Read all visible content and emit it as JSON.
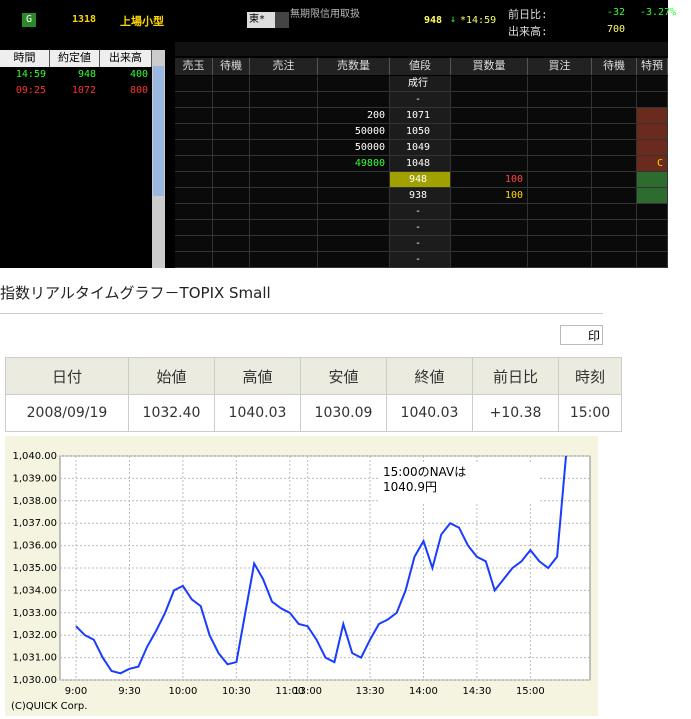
{
  "board": {
    "badge": "G",
    "code": "1318",
    "name": "上場小型",
    "market": "東*",
    "credit": "無期限信用取扱",
    "price": "948",
    "arrow": "↓",
    "time": "*14:59",
    "change_label": "前日比:",
    "change": "-32",
    "change_pct": "-3.27%",
    "volume_label": "出来高:",
    "volume": "700",
    "trades": {
      "headers": [
        "時間",
        "約定値",
        "出来高"
      ],
      "rows": [
        [
          "14:59",
          "948",
          "400"
        ],
        [
          "09:25",
          "1072",
          "800"
        ]
      ]
    },
    "book": {
      "headers": [
        "売玉",
        "待機",
        "売注",
        "売数量",
        "値段",
        "買数量",
        "買注",
        "待機",
        "特預"
      ],
      "rows": [
        {
          "price": "成行"
        },
        {
          "price": "-"
        },
        {
          "sell_qty": "200",
          "price": "1071"
        },
        {
          "sell_qty": "50000",
          "price": "1050"
        },
        {
          "sell_qty": "50000",
          "price": "1049"
        },
        {
          "sell_qty": "49800",
          "price": "1048",
          "special": "C"
        },
        {
          "price": "948",
          "buy_qty": "100"
        },
        {
          "price": "938",
          "buy_qty": "100"
        },
        {
          "price": "-"
        },
        {
          "price": "-"
        },
        {
          "price": "-"
        },
        {
          "price": "-"
        }
      ]
    }
  },
  "page": {
    "title": "指数リアルタイムグラフ－TOPIX Small",
    "print": "印",
    "table": {
      "headers": [
        "日付",
        "始値",
        "高値",
        "安値",
        "終値",
        "前日比",
        "時刻"
      ],
      "rows": [
        [
          "2008/09/19",
          "1032.40",
          "1040.03",
          "1030.09",
          "1040.03",
          "+10.38",
          "15:00"
        ]
      ]
    }
  },
  "chart_data": {
    "type": "line",
    "color": "#1a3cff",
    "grid": true,
    "categories": [
      "9:00",
      null,
      null,
      null,
      null,
      null,
      "9:30",
      null,
      null,
      null,
      null,
      null,
      "10:00",
      null,
      null,
      null,
      null,
      null,
      "10:30",
      null,
      null,
      null,
      null,
      null,
      "11:00",
      null,
      "13:00",
      null,
      null,
      null,
      null,
      null,
      null,
      "13:30",
      null,
      null,
      null,
      null,
      null,
      "14:00",
      null,
      null,
      null,
      null,
      null,
      "14:30",
      null,
      null,
      null,
      null,
      null,
      "15:00",
      null,
      null,
      null,
      null
    ],
    "values": [
      1032.4,
      1032.0,
      1031.8,
      1031.0,
      1030.4,
      1030.3,
      1030.5,
      1030.6,
      1031.5,
      1032.2,
      1033.0,
      1034.0,
      1034.2,
      1033.6,
      1033.3,
      1032.0,
      1031.2,
      1030.7,
      1030.8,
      1033.0,
      1035.2,
      1034.5,
      1033.5,
      1033.2,
      1033.0,
      1032.5,
      1032.4,
      1031.8,
      1031.0,
      1030.8,
      1032.5,
      1031.2,
      1031.0,
      1031.8,
      1032.5,
      1032.7,
      1033.0,
      1034.0,
      1035.5,
      1036.2,
      1035.0,
      1036.5,
      1037.0,
      1036.8,
      1036.0,
      1035.5,
      1035.3,
      1034.0,
      1034.5,
      1035.0,
      1035.3,
      1035.8,
      1035.3,
      1035.0,
      1035.5,
      1040.0
    ],
    "ylim": [
      1030,
      1040
    ],
    "yticks": [
      {
        "value": 1030,
        "label": "1,030.00"
      },
      {
        "value": 1031,
        "label": "1,031.00"
      },
      {
        "value": 1032,
        "label": "1,032.00"
      },
      {
        "value": 1033,
        "label": "1,033.00"
      },
      {
        "value": 1034,
        "label": "1,034.00"
      },
      {
        "value": 1035,
        "label": "1,035.00"
      },
      {
        "value": 1036,
        "label": "1,036.00"
      },
      {
        "value": 1037,
        "label": "1,037.00"
      },
      {
        "value": 1038,
        "label": "1,038.00"
      },
      {
        "value": 1039,
        "label": "1,039.00"
      },
      {
        "value": 1040,
        "label": "1,040.00"
      }
    ],
    "annotation": [
      "15:00のNAVは",
      "1040.9円"
    ],
    "credit": "(C)QUICK Corp."
  }
}
